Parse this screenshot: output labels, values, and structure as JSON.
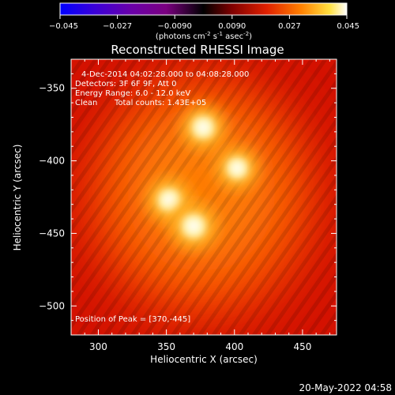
{
  "colorbar": {
    "ticks": [
      "-0.045",
      "-0.027",
      "-0.0090",
      "0.0090",
      "0.027",
      "0.045"
    ],
    "tick_values": [
      -0.045,
      -0.027,
      -0.009,
      0.009,
      0.027,
      0.045
    ],
    "min": -0.045,
    "max": 0.045,
    "units_main": "(photons cm",
    "units_exp1": "-2",
    "units_mid": " s",
    "units_exp2": "-1",
    "units_end": " asec",
    "units_exp3": "-2",
    "units_close": ")"
  },
  "chart_data": {
    "type": "heatmap",
    "title": "Reconstructed RHESSI Image",
    "xlabel": "Heliocentric X (arcsec)",
    "ylabel": "Heliocentric Y (arcsec)",
    "xlim": [
      280,
      475
    ],
    "ylim": [
      -520,
      -330
    ],
    "x_ticks": [
      300,
      350,
      400,
      450
    ],
    "y_ticks": [
      -350,
      -400,
      -450,
      -500
    ],
    "x_tick_labels": [
      "300",
      "350",
      "400",
      "450"
    ],
    "y_tick_labels": [
      "−350",
      "−400",
      "−450",
      "−500"
    ],
    "sources": [
      {
        "x": 377,
        "y": -377,
        "intensity": 0.95
      },
      {
        "x": 402,
        "y": -405,
        "intensity": 0.9
      },
      {
        "x": 352,
        "y": -427,
        "intensity": 0.95
      },
      {
        "x": 370,
        "y": -445,
        "intensity": 1.0
      }
    ],
    "peak": {
      "x": 370,
      "y": -445
    }
  },
  "annotations": {
    "time_range": "4-Dec-2014 04:02:28.000 to 04:08:28.000",
    "detectors": "Detectors: 3F 6F 9F, Att 0",
    "energy": "Energy Range: 6.0 - 12.0 keV",
    "clean": "Clean",
    "total_counts": "Total counts: 1.43E+05",
    "peak_position": "Position of Peak = [370,-445]"
  },
  "footer": {
    "date": "20-May-2022 04:58"
  }
}
